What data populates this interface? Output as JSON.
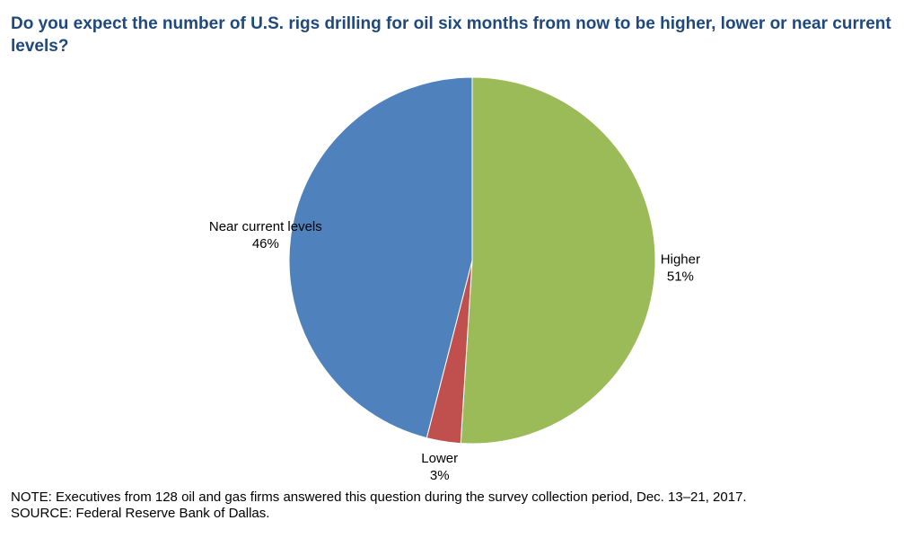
{
  "chart_data": {
    "type": "pie",
    "title": "Do you expect the number of U.S. rigs drilling for oil six months from now to be higher, lower or near current levels?",
    "slices": [
      {
        "label": "Higher",
        "value": 51,
        "value_label": "51%",
        "color": "#9bbb59"
      },
      {
        "label": "Lower",
        "value": 3,
        "value_label": "3%",
        "color": "#c0504d"
      },
      {
        "label": "Near current levels",
        "value": 46,
        "value_label": "46%",
        "color": "#4f81bd"
      }
    ],
    "start": "12 o'clock",
    "direction": "clockwise",
    "legend": "none"
  },
  "footer": {
    "note": "NOTE: Executives from 128 oil and gas firms answered this question during the survey collection period, Dec. 13–21, 2017.",
    "source": "SOURCE: Federal Reserve Bank of Dallas."
  },
  "colors": {
    "title": "#1f497d",
    "slice_border": "#ffffff"
  }
}
